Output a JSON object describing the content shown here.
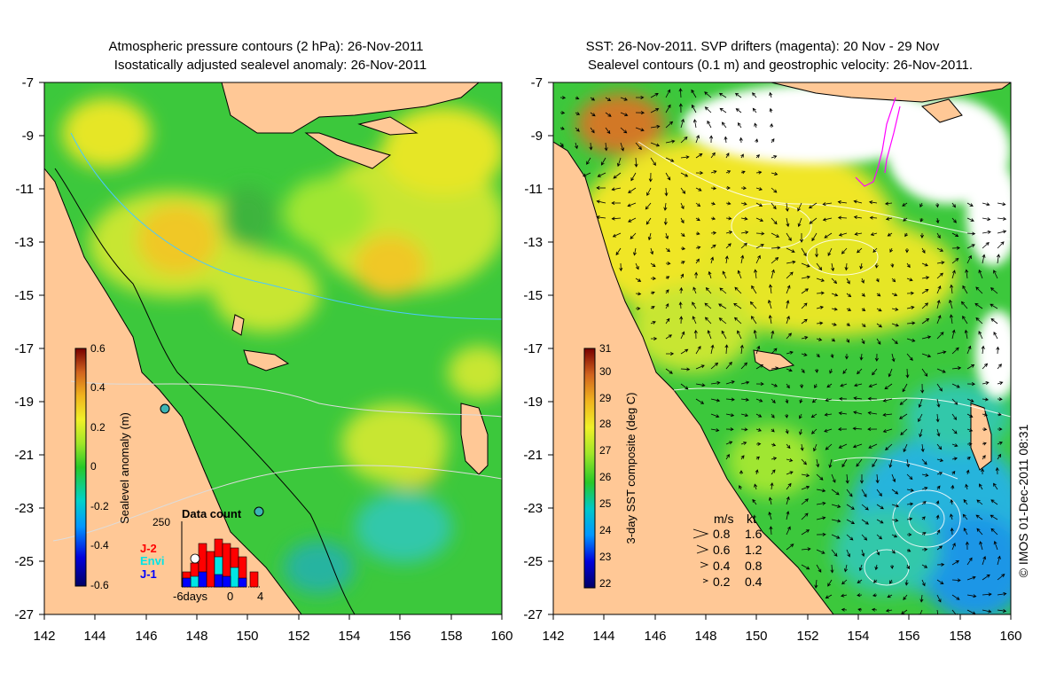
{
  "left_panel": {
    "title_line1": "Atmospheric pressure contours (2 hPa): 26-Nov-2011",
    "title_line2": "Isostatically adjusted sealevel anomaly: 26-Nov-2011",
    "y_ticks": [
      "-7",
      "-9",
      "-11",
      "-13",
      "-15",
      "-17",
      "-19",
      "-21",
      "-23",
      "-25",
      "-27"
    ],
    "x_ticks": [
      "142",
      "144",
      "146",
      "148",
      "150",
      "152",
      "154",
      "156",
      "158",
      "160"
    ],
    "colorbar": {
      "label": "Sealevel anomaly (m)",
      "ticks": [
        "0.6",
        "0.4",
        "0.2",
        "0",
        "-0.2",
        "-0.4",
        "-0.6"
      ]
    },
    "data_count": {
      "title": "Data count",
      "max_label": "250",
      "x_labels": [
        "-6days",
        "0",
        "4"
      ],
      "legend": [
        {
          "label": "J-2",
          "color": "#ff0000"
        },
        {
          "label": "Envi",
          "color": "#00e5e5"
        },
        {
          "label": "J-1",
          "color": "#0000ff"
        }
      ]
    }
  },
  "right_panel": {
    "title_line1": "SST: 26-Nov-2011. SVP drifters (magenta): 20 Nov - 29 Nov",
    "title_line2": "Sealevel contours (0.1 m) and geostrophic velocity: 26-Nov-2011.",
    "y_ticks": [
      "-7",
      "-9",
      "-11",
      "-13",
      "-15",
      "-17",
      "-19",
      "-21",
      "-23",
      "-25",
      "-27"
    ],
    "x_ticks": [
      "142",
      "144",
      "146",
      "148",
      "150",
      "152",
      "154",
      "156",
      "158",
      "160"
    ],
    "colorbar": {
      "label": "3-day SST composite (deg C)",
      "ticks": [
        "31",
        "30",
        "29",
        "28",
        "27",
        "26",
        "25",
        "24",
        "23",
        "22"
      ]
    },
    "velocity_legend": {
      "header_ms": "m/s",
      "header_kt": "kt",
      "rows": [
        {
          "ms": "0.8",
          "kt": "1.6"
        },
        {
          "ms": "0.6",
          "kt": "1.2"
        },
        {
          "ms": "0.4",
          "kt": "0.8"
        },
        {
          "ms": "0.2",
          "kt": "0.4"
        }
      ]
    }
  },
  "copyright": "© IMOS 01-Dec-2011 08:31",
  "colors": {
    "land": "#ffc896",
    "sea_green": "#3cc83c",
    "sea_yellow": "#e6e628",
    "sea_orange": "#f0aa1e",
    "sea_cyan": "#32c8aa"
  }
}
